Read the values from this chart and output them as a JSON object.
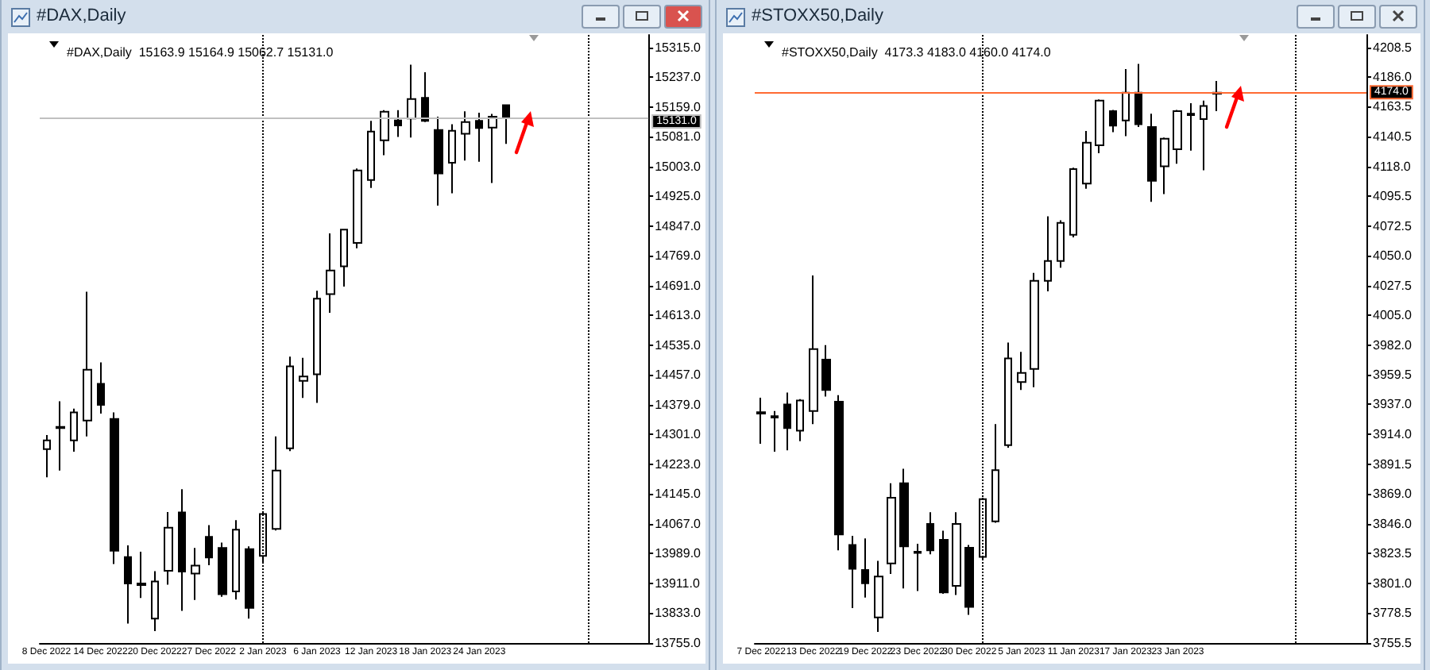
{
  "chart_data": [
    {
      "type": "candlestick",
      "title": "#DAX,Daily",
      "subtitle": "#DAX,Daily  15163.9 15164.9 15062.7 15131.0",
      "categories": [
        "8 Dec 2022",
        null,
        null,
        null,
        "14 Dec 2022",
        null,
        null,
        null,
        "20 Dec 2022",
        null,
        null,
        null,
        "27 Dec 2022",
        null,
        null,
        null,
        "2 Jan 2023",
        null,
        null,
        null,
        "6 Jan 2023",
        null,
        null,
        null,
        "12 Jan 2023",
        null,
        null,
        null,
        "18 Jan 2023",
        null,
        null,
        null,
        "24 Jan 2023",
        null,
        null,
        null,
        null,
        null,
        null,
        null,
        null,
        null,
        null,
        null,
        null
      ],
      "ohlc": [
        [
          14263,
          14300,
          14189,
          14286
        ],
        [
          14321,
          14388,
          14207,
          14318
        ],
        [
          14286,
          14369,
          14256,
          14359
        ],
        [
          14338,
          14675,
          14296,
          14471
        ],
        [
          14434,
          14490,
          14356,
          14379
        ],
        [
          14342,
          14359,
          13962,
          13997
        ],
        [
          13980,
          14011,
          13806,
          13911
        ],
        [
          13911,
          13994,
          13873,
          13907
        ],
        [
          13819,
          13943,
          13786,
          13916
        ],
        [
          13944,
          14098,
          13908,
          14057
        ],
        [
          14097,
          14158,
          13839,
          13942
        ],
        [
          13937,
          14004,
          13868,
          13958
        ],
        [
          14033,
          14064,
          13959,
          13979
        ],
        [
          14004,
          14018,
          13876,
          13883
        ],
        [
          13890,
          14077,
          13869,
          14052
        ],
        [
          14001,
          14008,
          13819,
          13847
        ],
        [
          13983,
          14098,
          13967,
          14093
        ],
        [
          14054,
          14296,
          14050,
          14207
        ],
        [
          14265,
          14505,
          14258,
          14480
        ],
        [
          14442,
          14502,
          14397,
          14453
        ],
        [
          14459,
          14678,
          14384,
          14657
        ],
        [
          14669,
          14828,
          14620,
          14731
        ],
        [
          14742,
          14840,
          14689,
          14838
        ],
        [
          14803,
          14998,
          14789,
          14993
        ],
        [
          14968,
          15123,
          14947,
          15095
        ],
        [
          15072,
          15151,
          15033,
          15147
        ],
        [
          15124,
          15151,
          15081,
          15111
        ],
        [
          15129,
          15270,
          15079,
          15180
        ],
        [
          15183,
          15250,
          15120,
          15123
        ],
        [
          15099,
          15134,
          14901,
          14985
        ],
        [
          15013,
          15114,
          14933,
          15097
        ],
        [
          15089,
          15148,
          15019,
          15120
        ],
        [
          15123,
          15144,
          15016,
          15104
        ],
        [
          15105,
          15141,
          14960,
          15134
        ],
        [
          15163.9,
          15164.9,
          15062.7,
          15131.0
        ],
        null,
        null,
        null,
        null,
        null,
        null,
        null,
        null,
        null,
        null
      ],
      "ylim": [
        13755,
        15348
      ],
      "yticks": [
        {
          "value": 13755,
          "label": "13755.0"
        },
        {
          "value": 13833,
          "label": "13833.0"
        },
        {
          "value": 13911,
          "label": "13911.0"
        },
        {
          "value": 13989,
          "label": "13989.0"
        },
        {
          "value": 14067,
          "label": "14067.0"
        },
        {
          "value": 14145,
          "label": "14145.0"
        },
        {
          "value": 14223,
          "label": "14223.0"
        },
        {
          "value": 14301,
          "label": "14301.0"
        },
        {
          "value": 14379,
          "label": "14379.0"
        },
        {
          "value": 14457,
          "label": "14457.0"
        },
        {
          "value": 14535,
          "label": "14535.0"
        },
        {
          "value": 14613,
          "label": "14613.0"
        },
        {
          "value": 14691,
          "label": "14691.0"
        },
        {
          "value": 14769,
          "label": "14769.0"
        },
        {
          "value": 14847,
          "label": "14847.0"
        },
        {
          "value": 14925,
          "label": "14925.0"
        },
        {
          "value": 15003,
          "label": "15003.0"
        },
        {
          "value": 15081,
          "label": "15081.0"
        },
        {
          "value": 15159,
          "label": "15159.0"
        },
        {
          "value": 15237,
          "label": "15237.0"
        },
        {
          "value": 15315,
          "label": "15315.0"
        }
      ],
      "ref_lines": [
        {
          "axis": "y",
          "value": 15131.0,
          "label": "15131.0",
          "color": "#c0c0c0",
          "line_style": "solid"
        }
      ]
    },
    {
      "type": "candlestick",
      "title": "#STOXX50,Daily",
      "subtitle": "#STOXX50,Daily  4173.3 4183.0 4160.0 4174.0",
      "categories": [
        "7 Dec 2022",
        null,
        null,
        null,
        "13 Dec 2022",
        null,
        null,
        null,
        "19 Dec 2022",
        null,
        null,
        null,
        "23 Dec 2022",
        null,
        null,
        null,
        "30 Dec 2022",
        null,
        null,
        null,
        "5 Jan 2023",
        null,
        null,
        null,
        "11 Jan 2023",
        null,
        null,
        null,
        "17 Jan 2023",
        null,
        null,
        null,
        "23 Jan 2023",
        null,
        null,
        null,
        null,
        null,
        null,
        null,
        null,
        null,
        null,
        null,
        null,
        null,
        null
      ],
      "ohlc": [
        [
          3931,
          3942,
          3907,
          3930
        ],
        [
          3928,
          3932,
          3901,
          3927
        ],
        [
          3937,
          3946,
          3902,
          3919
        ],
        [
          3917,
          3941,
          3909,
          3940
        ],
        [
          3932,
          4035,
          3922,
          3979
        ],
        [
          3971,
          3982,
          3943,
          3948
        ],
        [
          3939,
          3944,
          3826,
          3838
        ],
        [
          3830,
          3837,
          3782,
          3812
        ],
        [
          3811,
          3835,
          3790,
          3801
        ],
        [
          3775,
          3818,
          3764,
          3806
        ],
        [
          3816,
          3877,
          3808,
          3866
        ],
        [
          3877,
          3888,
          3797,
          3829
        ],
        [
          3825,
          3831,
          3795,
          3824
        ],
        [
          3846,
          3855,
          3823,
          3826
        ],
        [
          3834,
          3841,
          3793,
          3794
        ],
        [
          3799,
          3855,
          3792,
          3846
        ],
        [
          3828,
          3830,
          3777,
          3783
        ],
        [
          3821,
          3866,
          3819,
          3865
        ],
        [
          3848,
          3922,
          3847,
          3887
        ],
        [
          3906,
          3984,
          3904,
          3972
        ],
        [
          3954,
          3977,
          3948,
          3961
        ],
        [
          3964,
          4037,
          3950,
          4031
        ],
        [
          4031,
          4080,
          4023,
          4046
        ],
        [
          4046,
          4077,
          4041,
          4075
        ],
        [
          4066,
          4117,
          4064,
          4116
        ],
        [
          4105,
          4145,
          4101,
          4136
        ],
        [
          4134,
          4169,
          4128,
          4168
        ],
        [
          4160,
          4161,
          4144,
          4149
        ],
        [
          4153,
          4192,
          4141,
          4174
        ],
        [
          4174,
          4196,
          4148,
          4150
        ],
        [
          4148,
          4158,
          4091,
          4107
        ],
        [
          4118,
          4140,
          4097,
          4139
        ],
        [
          4131,
          4161,
          4120,
          4160
        ],
        [
          4158,
          4166,
          4130,
          4157
        ],
        [
          4154,
          4168,
          4115,
          4164
        ],
        [
          4173.3,
          4183.0,
          4160.0,
          4174.0
        ],
        null,
        null,
        null,
        null,
        null,
        null,
        null,
        null,
        null,
        null,
        null
      ],
      "ylim": [
        3755.5,
        4218
      ],
      "yticks": [
        {
          "value": 3755.5,
          "label": "3755.5"
        },
        {
          "value": 3778.5,
          "label": "3778.5"
        },
        {
          "value": 3801,
          "label": "3801.0"
        },
        {
          "value": 3823.5,
          "label": "3823.5"
        },
        {
          "value": 3846,
          "label": "3846.0"
        },
        {
          "value": 3869,
          "label": "3869.0"
        },
        {
          "value": 3891.5,
          "label": "3891.5"
        },
        {
          "value": 3914,
          "label": "3914.0"
        },
        {
          "value": 3937,
          "label": "3937.0"
        },
        {
          "value": 3959.5,
          "label": "3959.5"
        },
        {
          "value": 3982,
          "label": "3982.0"
        },
        {
          "value": 4005,
          "label": "4005.0"
        },
        {
          "value": 4027.5,
          "label": "4027.5"
        },
        {
          "value": 4050,
          "label": "4050.0"
        },
        {
          "value": 4072.5,
          "label": "4072.5"
        },
        {
          "value": 4095.5,
          "label": "4095.5"
        },
        {
          "value": 4118,
          "label": "4118.0"
        },
        {
          "value": 4140.5,
          "label": "4140.5"
        },
        {
          "value": 4163.5,
          "label": "4163.5"
        },
        {
          "value": 4186,
          "label": "4186.0"
        },
        {
          "value": 4208.5,
          "label": "4208.5"
        }
      ],
      "ref_lines": [
        {
          "axis": "y",
          "value": 4174.0,
          "label": "4174.0",
          "color": "#ff6a33",
          "line_style": "solid"
        }
      ]
    }
  ]
}
